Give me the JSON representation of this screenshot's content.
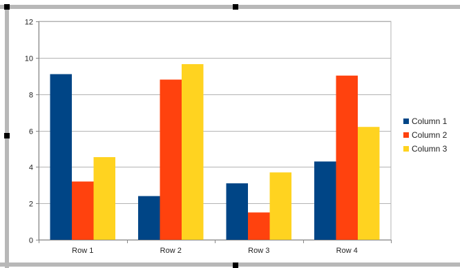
{
  "colors": {
    "frame": "#b8b8b8",
    "handle": "#000000",
    "grid": "#b3b3b3",
    "axis": "#888888"
  },
  "chart_data": {
    "type": "bar",
    "title": "",
    "xlabel": "",
    "ylabel": "",
    "categories": [
      "Row 1",
      "Row 2",
      "Row 3",
      "Row 4"
    ],
    "series": [
      {
        "name": "Column 1",
        "color": "#004586",
        "values": [
          9.1,
          2.4,
          3.1,
          4.3
        ]
      },
      {
        "name": "Column 2",
        "color": "#ff420e",
        "values": [
          3.2,
          8.8,
          1.5,
          9.02
        ]
      },
      {
        "name": "Column 3",
        "color": "#ffd320",
        "values": [
          4.54,
          9.65,
          3.7,
          6.2
        ]
      }
    ],
    "ylim": [
      0,
      12
    ],
    "yticks": [
      "0",
      "2",
      "4",
      "6",
      "8",
      "10",
      "12"
    ],
    "grid": true,
    "legend": "right"
  }
}
